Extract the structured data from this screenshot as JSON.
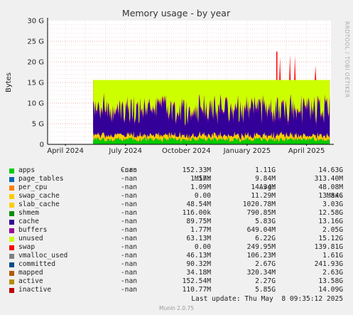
{
  "chart_data": {
    "type": "area",
    "title": "Memory usage - by year",
    "ylabel": "Bytes",
    "side_label": "RRDTOOL / TOBI OETIKER",
    "y_unit": "bytes",
    "ylim": [
      0,
      30
    ],
    "yticks": [
      "0",
      "5 G",
      "10 G",
      "15 G",
      "20 G",
      "25 G",
      "30 G"
    ],
    "x_ticks": [
      {
        "label": "April 2024",
        "date": "2024-04-01"
      },
      {
        "label": "July 2024",
        "date": "2024-07-01"
      },
      {
        "label": "October 2024",
        "date": "2024-10-01"
      },
      {
        "label": "January 2025",
        "date": "2025-01-01"
      },
      {
        "label": "April 2025",
        "date": "2025-04-01"
      }
    ],
    "x_range": [
      "2024-03-05",
      "2025-05-08"
    ],
    "data_start": "2024-05-13",
    "grid": true,
    "stacked": true,
    "colors": {
      "unused": "#ccff00",
      "swap": "#ff0000",
      "stack_top": "#ccff00",
      "background": "#ffffff",
      "axis": "#000000",
      "grid_major": "#e05050",
      "grid_minor": "#e0b0b0"
    },
    "approx_series": [
      {
        "name": "apps",
        "avg_G": 1.11,
        "color": "#00cc00"
      },
      {
        "name": "page_tables",
        "avg_G": 0.01,
        "color": "#0066b3"
      },
      {
        "name": "per_cpu",
        "avg_G": 0.05,
        "color": "#ff8000"
      },
      {
        "name": "slab_cache",
        "avg_G": 1.0,
        "color": "#ffcc00"
      },
      {
        "name": "cache",
        "avg_G": 5.83,
        "color": "#330099"
      },
      {
        "name": "buffers",
        "avg_G": 0.65,
        "color": "#990099"
      },
      {
        "name": "unused",
        "avg_G": 6.22,
        "color": "#ccff00"
      },
      {
        "name": "swap",
        "avg_G": 0.25,
        "color": "#ff0000"
      }
    ]
  },
  "legend": {
    "headers": {
      "cur": "Cur:",
      "min": "Min:",
      "avg": "Avg:",
      "max": "Max:"
    },
    "rows": [
      {
        "name": "apps",
        "color": "#00cc00",
        "cur": "-nan",
        "min": "152.33M",
        "avg": "1.11G",
        "max": "14.63G"
      },
      {
        "name": "page_tables",
        "color": "#0066b3",
        "cur": "-nan",
        "min": "1.57M",
        "avg": "9.84M",
        "max": "313.40M"
      },
      {
        "name": "per_cpu",
        "color": "#ff8000",
        "cur": "-nan",
        "min": "1.09M",
        "avg": "14.34M",
        "max": "48.08M"
      },
      {
        "name": "swap_cache",
        "color": "#ffcc00",
        "cur": "-nan",
        "min": "0.00",
        "avg": "11.29M",
        "max": "13.84G"
      },
      {
        "name": "slab_cache",
        "color": "#ffcc00",
        "cur": "-nan",
        "min": "48.54M",
        "avg": "1020.78M",
        "max": "3.03G"
      },
      {
        "name": "shmem",
        "color": "#008f00",
        "cur": "-nan",
        "min": "116.00k",
        "avg": "790.85M",
        "max": "12.58G"
      },
      {
        "name": "cache",
        "color": "#330099",
        "cur": "-nan",
        "min": "89.75M",
        "avg": "5.83G",
        "max": "13.16G"
      },
      {
        "name": "buffers",
        "color": "#990099",
        "cur": "-nan",
        "min": "1.77M",
        "avg": "649.04M",
        "max": "2.05G"
      },
      {
        "name": "unused",
        "color": "#ccff00",
        "cur": "-nan",
        "min": "63.13M",
        "avg": "6.22G",
        "max": "15.12G"
      },
      {
        "name": "swap",
        "color": "#ff0000",
        "cur": "-nan",
        "min": "0.00",
        "avg": "249.95M",
        "max": "139.81G"
      },
      {
        "name": "vmalloc_used",
        "color": "#808080",
        "cur": "-nan",
        "min": "46.13M",
        "avg": "106.23M",
        "max": "1.61G"
      },
      {
        "name": "committed",
        "color": "#004e8a",
        "cur": "-nan",
        "min": "90.32M",
        "avg": "2.67G",
        "max": "241.93G"
      },
      {
        "name": "mapped",
        "color": "#b35a00",
        "cur": "-nan",
        "min": "34.18M",
        "avg": "320.34M",
        "max": "2.63G"
      },
      {
        "name": "active",
        "color": "#b38f00",
        "cur": "-nan",
        "min": "152.54M",
        "avg": "2.27G",
        "max": "13.58G"
      },
      {
        "name": "inactive",
        "color": "#c00000",
        "cur": "-nan",
        "min": "110.77M",
        "avg": "5.85G",
        "max": "14.09G"
      }
    ]
  },
  "footer": {
    "last_update": "Last update: Thu May  8 09:35:12 2025",
    "version": "Munin 2.0.75"
  }
}
